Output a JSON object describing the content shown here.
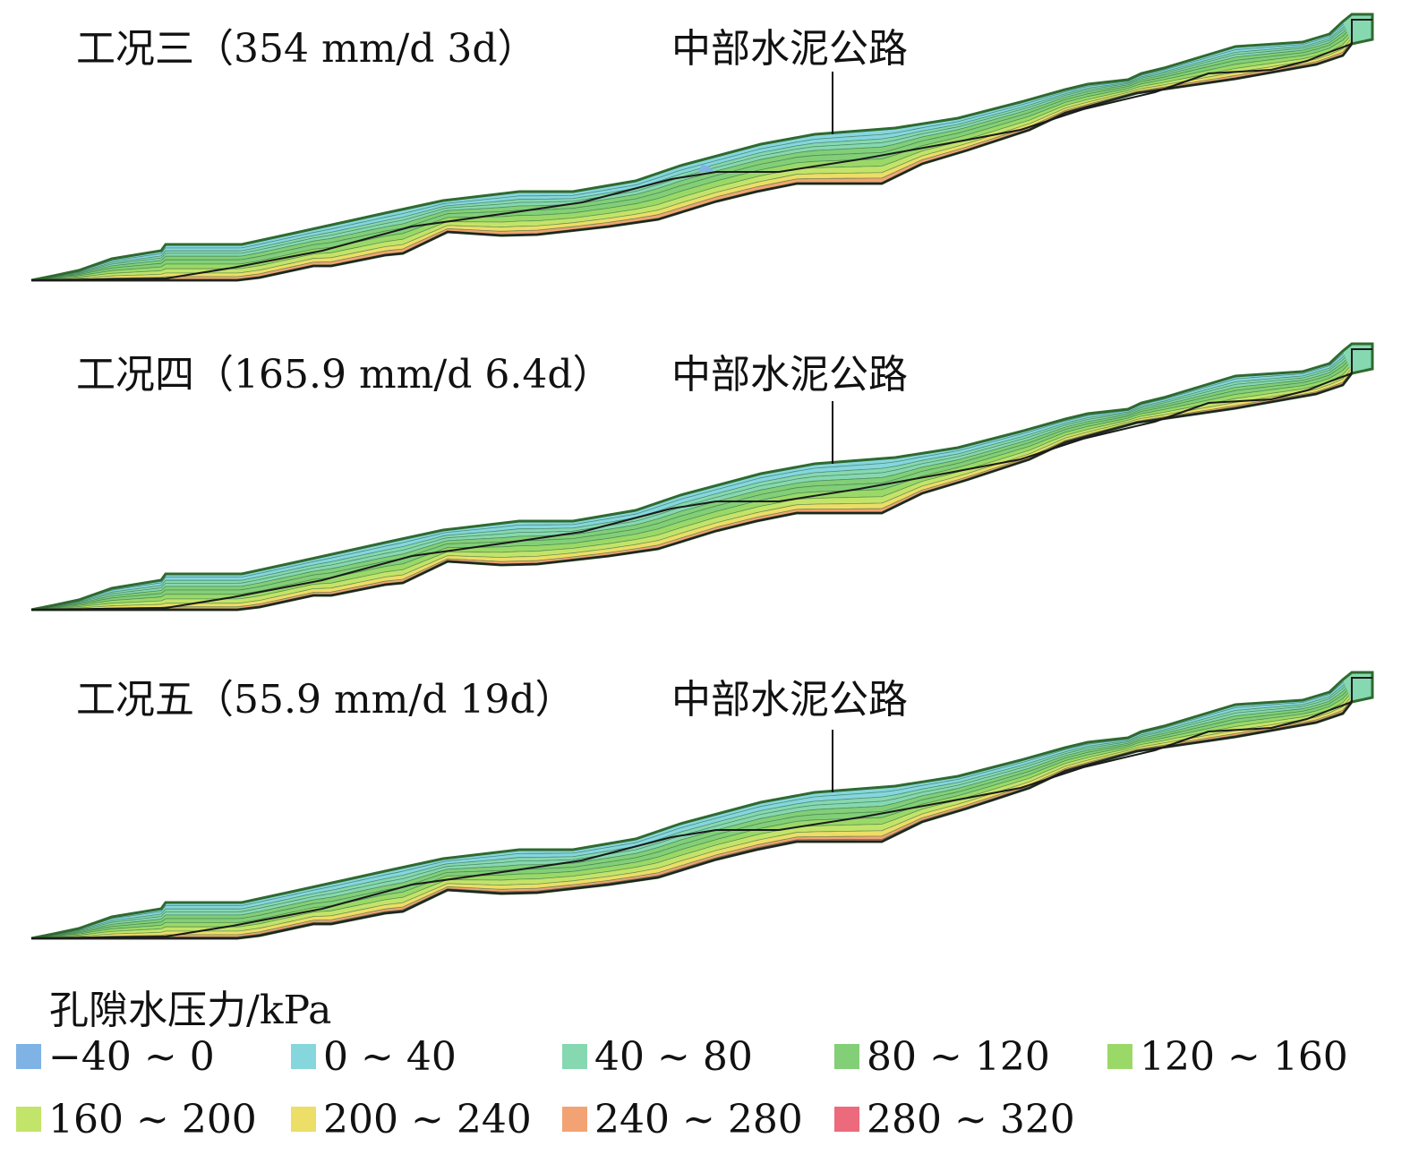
{
  "panels": [
    {
      "title": "工况三（354 mm/d 3d）",
      "road_label": "中部水泥公路"
    },
    {
      "title": "工况四（165.9 mm/d 6.4d）",
      "road_label": "中部水泥公路"
    },
    {
      "title": "工况五（55.9 mm/d 19d）",
      "road_label": "中部水泥公路"
    }
  ],
  "legend": {
    "title": "孔隙水压力/kPa",
    "items": [
      {
        "label": "−40 ~ 0",
        "color": "#7fb2e5"
      },
      {
        "label": "0 ~ 40",
        "color": "#86d6de"
      },
      {
        "label": "40 ~ 80",
        "color": "#86d8b0"
      },
      {
        "label": "80 ~ 120",
        "color": "#82cf78"
      },
      {
        "label": "120 ~ 160",
        "color": "#9ad968"
      },
      {
        "label": "160 ~ 200",
        "color": "#c3e46a"
      },
      {
        "label": "200 ~ 240",
        "color": "#ecde66"
      },
      {
        "label": "240 ~ 280",
        "color": "#f3a373"
      },
      {
        "label": "280 ~ 320",
        "color": "#ec6a7c"
      }
    ]
  }
}
